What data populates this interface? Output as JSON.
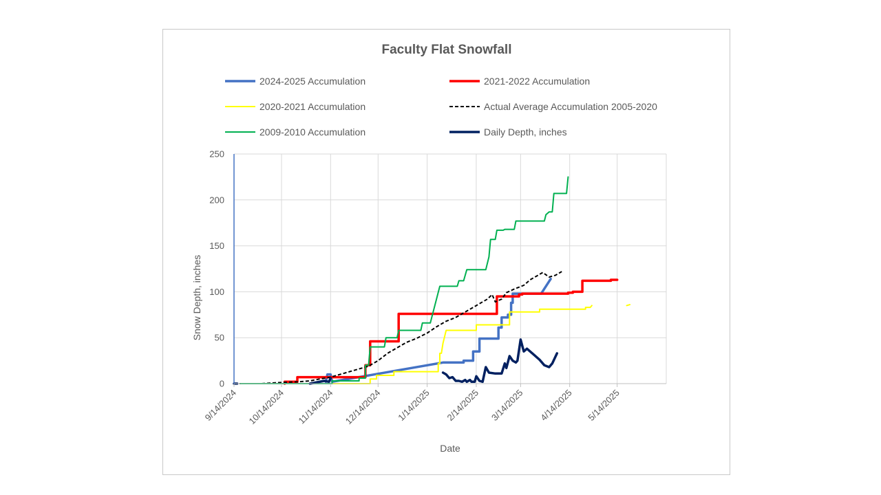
{
  "chart_data": {
    "type": "line",
    "title": "Faculty Flat Snowfall",
    "xlabel": "Date",
    "ylabel": "Snow Depth, inches",
    "ylim": [
      0,
      250
    ],
    "yticks": [
      "0",
      "50",
      "100",
      "150",
      "200",
      "250"
    ],
    "xlim": [
      "2024-09-14",
      "2025-06-14"
    ],
    "xticks": [
      {
        "date": "2024-09-14",
        "label": "9/14/2024"
      },
      {
        "date": "2024-10-14",
        "label": "10/14/2024"
      },
      {
        "date": "2024-11-14",
        "label": "11/14/2024"
      },
      {
        "date": "2024-12-14",
        "label": "12/14/2024"
      },
      {
        "date": "2025-01-14",
        "label": "1/14/2025"
      },
      {
        "date": "2025-02-14",
        "label": "2/14/2025"
      },
      {
        "date": "2025-03-14",
        "label": "3/14/2025"
      },
      {
        "date": "2025-04-14",
        "label": "4/14/2025"
      },
      {
        "date": "2025-05-14",
        "label": "5/14/2025"
      }
    ],
    "grid": true,
    "legend_position": "top",
    "series": [
      {
        "name": "2024-2025 Accumulation",
        "color": "#4472C4",
        "dash": "solid",
        "width": 3.5,
        "points": [
          [
            "2024-11-11",
            2
          ],
          [
            "2024-11-12",
            10
          ],
          [
            "2024-11-14",
            10
          ],
          [
            "2024-11-15",
            2
          ],
          [
            "2025-01-24",
            23
          ],
          [
            "2025-02-06",
            23
          ],
          [
            "2025-02-06",
            25
          ],
          [
            "2025-02-12",
            25
          ],
          [
            "2025-02-12",
            35
          ],
          [
            "2025-02-16",
            35
          ],
          [
            "2025-02-16",
            49
          ],
          [
            "2025-02-28",
            49
          ],
          [
            "2025-02-28",
            61
          ],
          [
            "2025-03-02",
            61
          ],
          [
            "2025-03-02",
            72
          ],
          [
            "2025-03-06",
            72
          ],
          [
            "2025-03-06",
            75
          ],
          [
            "2025-03-08",
            75
          ],
          [
            "2025-03-08",
            88
          ],
          [
            "2025-03-09",
            88
          ],
          [
            "2025-03-09",
            98
          ],
          [
            "2025-03-27",
            98
          ],
          [
            "2025-04-02",
            114
          ]
        ]
      },
      {
        "name": "2021-2022 Accumulation",
        "color": "#FF0000",
        "dash": "solid",
        "width": 3.5,
        "points": [
          [
            "2024-10-16",
            0
          ],
          [
            "2024-10-16",
            2
          ],
          [
            "2024-10-24",
            2
          ],
          [
            "2024-10-24",
            7
          ],
          [
            "2024-12-06",
            7
          ],
          [
            "2024-12-06",
            20
          ],
          [
            "2024-12-09",
            20
          ],
          [
            "2024-12-09",
            46
          ],
          [
            "2024-12-27",
            46
          ],
          [
            "2024-12-27",
            76
          ],
          [
            "2025-02-27",
            76
          ],
          [
            "2025-02-27",
            95
          ],
          [
            "2025-03-13",
            95
          ],
          [
            "2025-03-13",
            97
          ],
          [
            "2025-03-15",
            97
          ],
          [
            "2025-03-15",
            98
          ],
          [
            "2025-04-13",
            98
          ],
          [
            "2025-04-13",
            99
          ],
          [
            "2025-04-16",
            99
          ],
          [
            "2025-04-16",
            100
          ],
          [
            "2025-04-22",
            100
          ],
          [
            "2025-04-22",
            112
          ],
          [
            "2025-05-10",
            112
          ],
          [
            "2025-05-10",
            113
          ],
          [
            "2025-05-14",
            113
          ]
        ]
      },
      {
        "name": "2020-2021 Accumulation",
        "color": "#FFFF00",
        "dash": "solid",
        "width": 2,
        "points": [
          [
            "2024-11-01",
            0
          ],
          [
            "2024-12-09",
            0
          ],
          [
            "2024-12-09",
            5
          ],
          [
            "2024-12-13",
            5
          ],
          [
            "2024-12-13",
            9
          ],
          [
            "2024-12-24",
            9
          ],
          [
            "2024-12-24",
            13
          ],
          [
            "2025-01-21",
            13
          ],
          [
            "2025-01-21",
            22
          ],
          [
            "2025-01-22",
            22
          ],
          [
            "2025-01-22",
            33
          ],
          [
            "2025-01-23",
            33
          ],
          [
            "2025-01-24",
            44
          ],
          [
            "2025-01-26",
            58
          ],
          [
            "2025-02-14",
            58
          ],
          [
            "2025-02-14",
            64
          ],
          [
            "2025-03-07",
            64
          ],
          [
            "2025-03-07",
            78
          ],
          [
            "2025-03-26",
            78
          ],
          [
            "2025-03-26",
            81
          ],
          [
            "2025-04-24",
            81
          ],
          [
            "2025-04-24",
            83
          ],
          [
            "2025-04-27",
            83
          ],
          [
            "2025-04-28",
            85
          ],
          null,
          [
            "2025-05-20",
            85
          ],
          [
            "2025-05-22",
            86
          ]
        ]
      },
      {
        "name": "Actual Average Accumulation 2005-2020",
        "color": "#000000",
        "dash": "dashed",
        "width": 2,
        "points": [
          [
            "2024-09-14",
            0
          ],
          [
            "2024-10-01",
            0
          ],
          [
            "2024-10-10",
            1
          ],
          [
            "2024-10-25",
            2
          ],
          [
            "2024-11-01",
            3
          ],
          [
            "2024-11-07",
            5
          ],
          [
            "2024-11-14",
            7
          ],
          [
            "2024-11-20",
            10
          ],
          [
            "2024-11-26",
            13
          ],
          [
            "2024-12-02",
            16
          ],
          [
            "2024-12-08",
            19
          ],
          [
            "2024-12-14",
            25
          ],
          [
            "2024-12-20",
            33
          ],
          [
            "2024-12-26",
            39
          ],
          [
            "2025-01-01",
            45
          ],
          [
            "2025-01-07",
            49
          ],
          [
            "2025-01-14",
            55
          ],
          [
            "2025-01-20",
            62
          ],
          [
            "2025-01-26",
            68
          ],
          [
            "2025-02-01",
            72
          ],
          [
            "2025-02-07",
            78
          ],
          [
            "2025-02-13",
            84
          ],
          [
            "2025-02-17",
            88
          ],
          [
            "2025-02-21",
            92
          ],
          [
            "2025-02-24",
            97
          ],
          [
            "2025-02-26",
            89
          ],
          [
            "2025-03-02",
            92
          ],
          [
            "2025-03-05",
            99
          ],
          [
            "2025-03-10",
            103
          ],
          [
            "2025-03-16",
            107
          ],
          [
            "2025-03-20",
            113
          ],
          [
            "2025-03-24",
            117
          ],
          [
            "2025-03-28",
            121
          ],
          [
            "2025-04-01",
            116
          ],
          [
            "2025-04-05",
            118
          ],
          [
            "2025-04-09",
            122
          ]
        ]
      },
      {
        "name": "2009-2010 Accumulation",
        "color": "#00B050",
        "dash": "solid",
        "width": 2,
        "points": [
          [
            "2024-09-18",
            0
          ],
          [
            "2024-11-15",
            0
          ],
          [
            "2024-11-15",
            3
          ],
          [
            "2024-12-02",
            3
          ],
          [
            "2024-12-02",
            6
          ],
          [
            "2024-12-06",
            6
          ],
          [
            "2024-12-06",
            20
          ],
          [
            "2024-12-08",
            20
          ],
          [
            "2024-12-09",
            40
          ],
          [
            "2024-12-18",
            40
          ],
          [
            "2024-12-19",
            50
          ],
          [
            "2024-12-26",
            50
          ],
          [
            "2024-12-27",
            58
          ],
          [
            "2025-01-10",
            58
          ],
          [
            "2025-01-11",
            66
          ],
          [
            "2025-01-16",
            66
          ],
          [
            "2025-01-22",
            106
          ],
          [
            "2025-02-02",
            106
          ],
          [
            "2025-02-03",
            112
          ],
          [
            "2025-02-06",
            112
          ],
          [
            "2025-02-08",
            124
          ],
          [
            "2025-02-20",
            124
          ],
          [
            "2025-02-22",
            138
          ],
          [
            "2025-02-23",
            157
          ],
          [
            "2025-02-26",
            157
          ],
          [
            "2025-02-27",
            167
          ],
          [
            "2025-03-03",
            167
          ],
          [
            "2025-03-04",
            168
          ],
          [
            "2025-03-10",
            168
          ],
          [
            "2025-03-11",
            177
          ],
          [
            "2025-03-29",
            177
          ],
          [
            "2025-03-30",
            184
          ],
          [
            "2025-04-01",
            187
          ],
          [
            "2025-04-03",
            187
          ],
          [
            "2025-04-04",
            207
          ],
          [
            "2025-04-12",
            207
          ],
          [
            "2025-04-13",
            225
          ]
        ]
      },
      {
        "name": "Daily Depth, inches",
        "color": "#002060",
        "dash": "solid",
        "width": 3.5,
        "points": [
          [
            "2024-09-14",
            0
          ],
          [
            "2024-09-16",
            0
          ],
          null,
          [
            "2024-11-01",
            0
          ],
          [
            "2024-11-10",
            3
          ],
          [
            "2024-11-13",
            2
          ],
          [
            "2024-11-14",
            6
          ],
          null,
          [
            "2025-01-24",
            12
          ],
          [
            "2025-01-26",
            10
          ],
          [
            "2025-01-28",
            6
          ],
          [
            "2025-01-30",
            7
          ],
          [
            "2025-02-01",
            3
          ],
          [
            "2025-02-03",
            3
          ],
          [
            "2025-02-05",
            2
          ],
          [
            "2025-02-07",
            4
          ],
          [
            "2025-02-08",
            2
          ],
          [
            "2025-02-10",
            4
          ],
          [
            "2025-02-11",
            2
          ],
          [
            "2025-02-13",
            2
          ],
          [
            "2025-02-14",
            8
          ],
          [
            "2025-02-16",
            3
          ],
          [
            "2025-02-18",
            2
          ],
          [
            "2025-02-20",
            18
          ],
          [
            "2025-02-22",
            12
          ],
          [
            "2025-02-26",
            11
          ],
          [
            "2025-03-02",
            11
          ],
          [
            "2025-03-04",
            22
          ],
          [
            "2025-03-05",
            17
          ],
          [
            "2025-03-07",
            30
          ],
          [
            "2025-03-09",
            25
          ],
          [
            "2025-03-11",
            23
          ],
          [
            "2025-03-12",
            25
          ],
          [
            "2025-03-14",
            48
          ],
          [
            "2025-03-16",
            35
          ],
          [
            "2025-03-18",
            38
          ],
          [
            "2025-03-22",
            32
          ],
          [
            "2025-03-26",
            26
          ],
          [
            "2025-03-29",
            20
          ],
          [
            "2025-04-01",
            18
          ],
          [
            "2025-04-03",
            22
          ],
          [
            "2025-04-06",
            33
          ]
        ]
      }
    ]
  }
}
